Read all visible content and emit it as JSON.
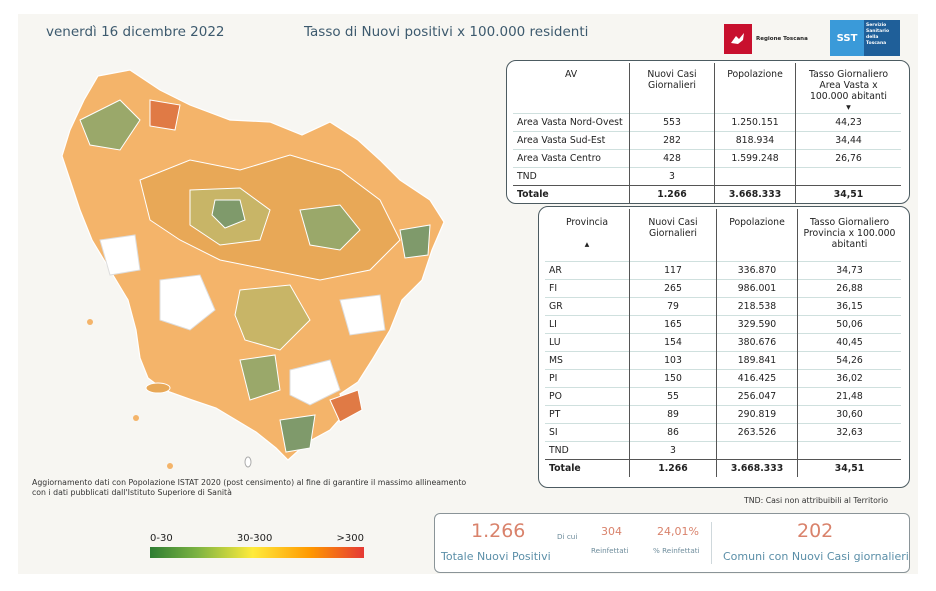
{
  "header": {
    "date": "venerdì 16 dicembre 2022",
    "title": "Tasso di Nuovi positivi x 100.000 residenti",
    "logo_rt": "Regione Toscana",
    "logo_sst_mark": "SST",
    "logo_sst_text": "Servizio Sanitario della Toscana"
  },
  "av_table": {
    "headers": [
      "AV",
      "Nuovi Casi Giornalieri",
      "Popolazione",
      "Tasso Giornaliero Area Vasta x 100.000 abitanti"
    ],
    "rows": [
      [
        "Area Vasta Nord-Ovest",
        "553",
        "1.250.151",
        "44,23"
      ],
      [
        "Area Vasta Sud-Est",
        "282",
        "818.934",
        "34,44"
      ],
      [
        "Area Vasta Centro",
        "428",
        "1.599.248",
        "26,76"
      ],
      [
        "TND",
        "3",
        "",
        ""
      ]
    ],
    "total": [
      "Totale",
      "1.266",
      "3.668.333",
      "34,51"
    ]
  },
  "prov_table": {
    "headers": [
      "Provincia",
      "Nuovi Casi Giornalieri",
      "Popolazione",
      "Tasso Giornaliero Provincia x 100.000 abitanti"
    ],
    "rows": [
      [
        "AR",
        "117",
        "336.870",
        "34,73"
      ],
      [
        "FI",
        "265",
        "986.001",
        "26,88"
      ],
      [
        "GR",
        "79",
        "218.538",
        "36,15"
      ],
      [
        "LI",
        "165",
        "329.590",
        "50,06"
      ],
      [
        "LU",
        "154",
        "380.676",
        "40,45"
      ],
      [
        "MS",
        "103",
        "189.841",
        "54,26"
      ],
      [
        "PI",
        "150",
        "416.425",
        "36,02"
      ],
      [
        "PO",
        "55",
        "256.047",
        "21,48"
      ],
      [
        "PT",
        "89",
        "290.819",
        "30,60"
      ],
      [
        "SI",
        "86",
        "263.526",
        "32,63"
      ],
      [
        "TND",
        "3",
        "",
        ""
      ]
    ],
    "total": [
      "Totale",
      "1.266",
      "3.668.333",
      "34,51"
    ]
  },
  "note": "Aggiornamento dati con Popolazione ISTAT 2020 (post censimento) al fine di garantire il massimo allineamento con i dati pubblicati dall'Istituto Superiore di Sanità",
  "tnd_note": "TND: Casi non attribuibili al Territorio",
  "legend": {
    "labels": [
      "0-30",
      "30-300",
      ">300"
    ]
  },
  "kpi": {
    "total_value": "1.266",
    "total_label": "Totale Nuovi Positivi",
    "di_cui": "Di cui",
    "reinfected_value": "304",
    "reinfected_label": "Reinfettati",
    "pct_value": "24,01%",
    "pct_label": "% Reinfettati",
    "comuni_value": "202",
    "comuni_label": "Comuni con Nuovi Casi giornalieri"
  },
  "colors": {
    "map_fills": [
      "#f4b46a",
      "#f7c27a",
      "#e8a857",
      "#c8b567",
      "#9aa86a",
      "#7f9a6b",
      "#ffffff",
      "#e07a45"
    ]
  }
}
